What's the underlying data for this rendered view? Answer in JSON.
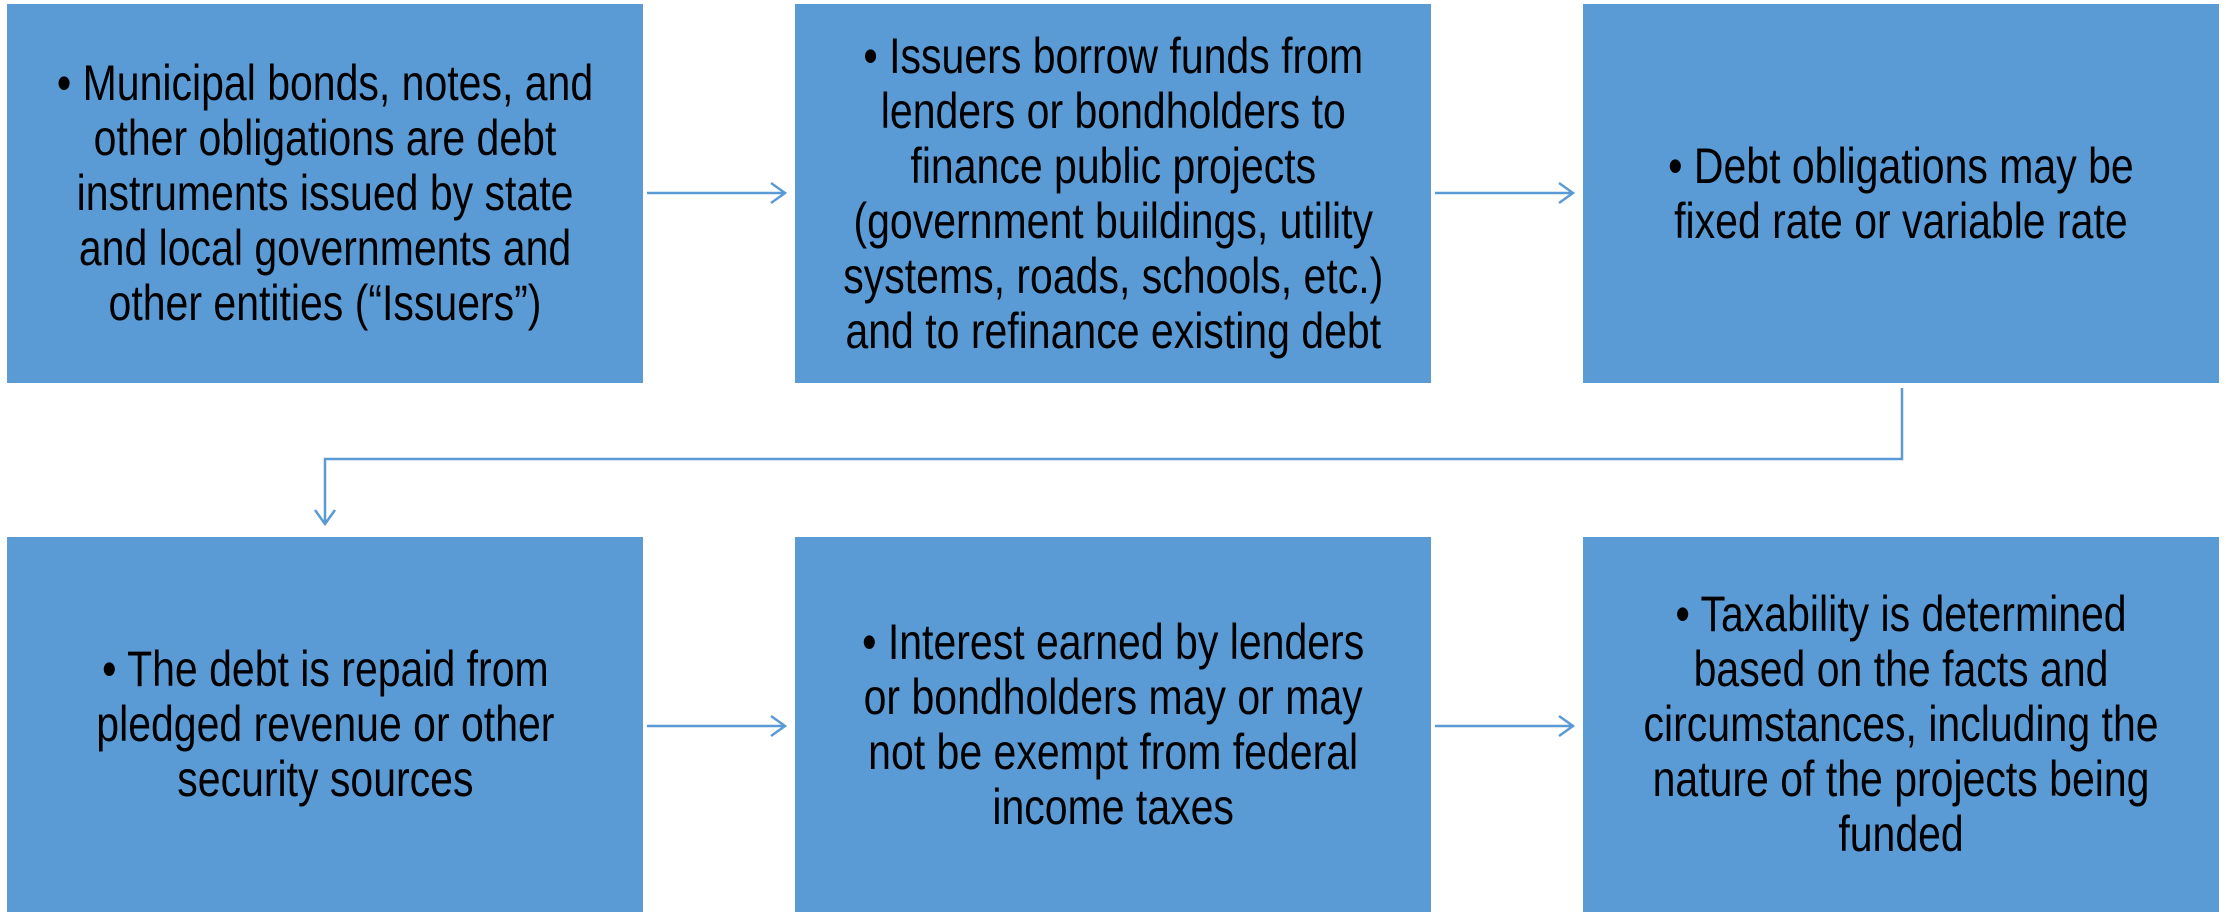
{
  "nodes": [
    {
      "lines": [
        "• Municipal bonds, notes, and",
        "other obligations are debt",
        "instruments issued by state",
        "and local governments and",
        "other entities (“Issuers”)"
      ]
    },
    {
      "lines": [
        "• Issuers borrow funds from",
        "lenders or bondholders to",
        "finance public projects",
        "(government buildings, utility",
        "systems, roads, schools, etc.)",
        "and to refinance existing debt"
      ]
    },
    {
      "lines": [
        "• Debt obligations may be",
        "fixed rate or variable rate"
      ]
    },
    {
      "lines": [
        "• The debt is repaid from",
        "pledged revenue or other",
        "security sources"
      ]
    },
    {
      "lines": [
        "• Interest earned by lenders",
        "or bondholders may or may",
        "not be exempt from federal",
        "income taxes"
      ]
    },
    {
      "lines": [
        "• Taxability is determined",
        "based on the facts and",
        "circumstances, including the",
        "nature of the projects being",
        "funded"
      ]
    }
  ]
}
